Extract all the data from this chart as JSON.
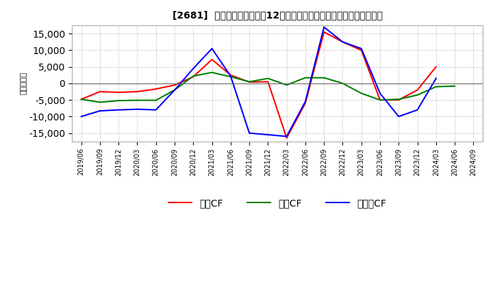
{
  "title": "[2681]  キャッシュフローの12か月移動合計の対前年同期増減額の推移",
  "ylabel": "（百万円）",
  "background_color": "#ffffff",
  "plot_bg_color": "#ffffff",
  "grid_color": "#aaaaaa",
  "x_labels": [
    "2019/06",
    "2019/09",
    "2019/12",
    "2020/03",
    "2020/06",
    "2020/09",
    "2020/12",
    "2021/03",
    "2021/06",
    "2021/09",
    "2021/12",
    "2022/03",
    "2022/06",
    "2022/09",
    "2022/12",
    "2023/03",
    "2023/06",
    "2023/09",
    "2023/12",
    "2024/03",
    "2024/06",
    "2024/09"
  ],
  "operating_cf": [
    -4800,
    -2500,
    -2700,
    -2500,
    -1700,
    -500,
    2000,
    7200,
    2500,
    400,
    500,
    -16500,
    -6000,
    15500,
    12500,
    10000,
    -5000,
    -5000,
    -2000,
    5000,
    null,
    null
  ],
  "investing_cf": [
    -4800,
    -5700,
    -5200,
    -5100,
    -5100,
    -2000,
    2200,
    3300,
    2000,
    500,
    1500,
    -500,
    1700,
    1700,
    0,
    -3000,
    -5000,
    -4800,
    -3500,
    -1000,
    -800,
    null
  ],
  "free_cf": [
    -10000,
    -8300,
    -8000,
    -7800,
    -8000,
    -2000,
    4500,
    10500,
    2200,
    -15000,
    -15500,
    -16000,
    -5500,
    17000,
    12500,
    10500,
    -3000,
    -10000,
    -8000,
    1500,
    null,
    null
  ],
  "operating_color": "#ff0000",
  "investing_color": "#008000",
  "free_color": "#0000ff",
  "ylim": [
    -17500,
    17500
  ],
  "yticks": [
    -15000,
    -10000,
    -5000,
    0,
    5000,
    10000,
    15000
  ],
  "legend_labels": [
    "営業CF",
    "投資CF",
    "フリーCF"
  ]
}
